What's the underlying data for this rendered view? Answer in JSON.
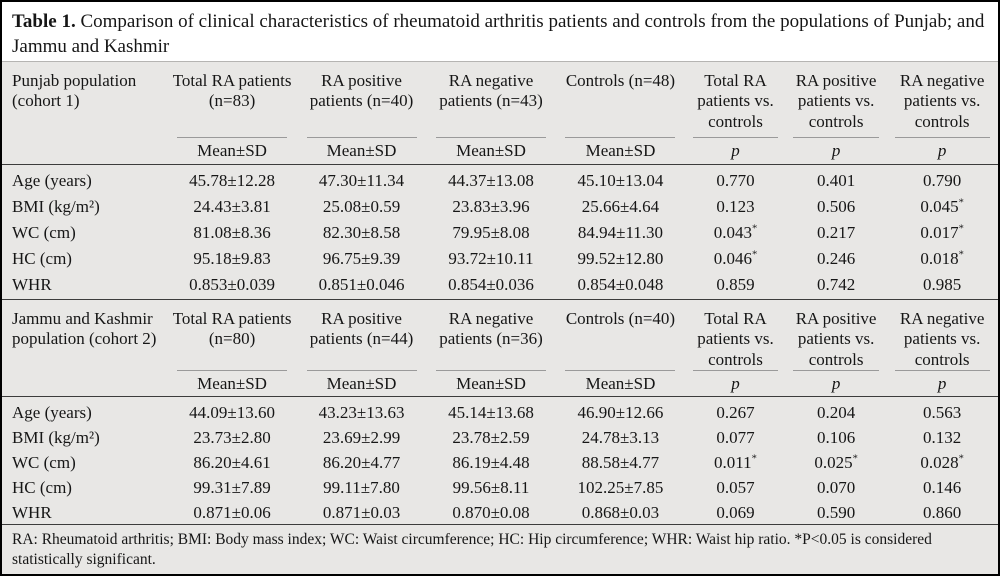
{
  "title": {
    "label": "Table 1.",
    "text": "Comparison of clinical characteristics of rheumatoid arthritis patients and controls from the populations of Punjab; and Jammu and Kashmir"
  },
  "tables": [
    {
      "row_header": "Punjab population (cohort 1)",
      "columns": [
        {
          "label": "Total RA patients (n=83)",
          "sub": "Mean±SD"
        },
        {
          "label": "RA positive patients (n=40)",
          "sub": "Mean±SD"
        },
        {
          "label": "RA negative patients (n=43)",
          "sub": "Mean±SD"
        },
        {
          "label": "Controls (n=48)",
          "sub": "Mean±SD"
        },
        {
          "label": "Total RA patients vs. controls",
          "sub": "p"
        },
        {
          "label": "RA positive patients vs. controls",
          "sub": "p"
        },
        {
          "label": "RA negative patients vs. controls",
          "sub": "p"
        }
      ],
      "rows": [
        {
          "label": "Age (years)",
          "values": [
            "45.78±12.28",
            "47.30±11.34",
            "44.37±13.08",
            "45.10±13.04",
            "0.770",
            "0.401",
            "0.790"
          ]
        },
        {
          "label": "BMI (kg/m²)",
          "values": [
            "24.43±3.81",
            "25.08±0.59",
            "23.83±3.96",
            "25.66±4.64",
            "0.123",
            "0.506",
            "0.045*"
          ]
        },
        {
          "label": "WC (cm)",
          "values": [
            "81.08±8.36",
            "82.30±8.58",
            "79.95±8.08",
            "84.94±11.30",
            "0.043*",
            "0.217",
            "0.017*"
          ]
        },
        {
          "label": "HC (cm)",
          "values": [
            "95.18±9.83",
            "96.75±9.39",
            "93.72±10.11",
            "99.52±12.80",
            "0.046*",
            "0.246",
            "0.018*"
          ]
        },
        {
          "label": "WHR",
          "values": [
            "0.853±0.039",
            "0.851±0.046",
            "0.854±0.036",
            "0.854±0.048",
            "0.859",
            "0.742",
            "0.985"
          ]
        }
      ]
    },
    {
      "row_header": "Jammu and Kashmir population (cohort 2)",
      "columns": [
        {
          "label": "Total RA patients (n=80)",
          "sub": "Mean±SD"
        },
        {
          "label": "RA positive patients (n=44)",
          "sub": "Mean±SD"
        },
        {
          "label": "RA negative patients (n=36)",
          "sub": "Mean±SD"
        },
        {
          "label": "Controls (n=40)",
          "sub": "Mean±SD"
        },
        {
          "label": "Total RA patients vs. controls",
          "sub": "p"
        },
        {
          "label": "RA positive patients vs. controls",
          "sub": "p"
        },
        {
          "label": "RA negative patients vs. controls",
          "sub": "p"
        }
      ],
      "rows": [
        {
          "label": "Age (years)",
          "values": [
            "44.09±13.60",
            "43.23±13.63",
            "45.14±13.68",
            "46.90±12.66",
            "0.267",
            "0.204",
            "0.563"
          ]
        },
        {
          "label": "BMI (kg/m²)",
          "values": [
            "23.73±2.80",
            "23.69±2.99",
            "23.78±2.59",
            "24.78±3.13",
            "0.077",
            "0.106",
            "0.132"
          ]
        },
        {
          "label": "WC (cm)",
          "values": [
            "86.20±4.61",
            "86.20±4.77",
            "86.19±4.48",
            "88.58±4.77",
            "0.011*",
            "0.025*",
            "0.028*"
          ]
        },
        {
          "label": "HC (cm)",
          "values": [
            "99.31±7.89",
            "99.11±7.80",
            "99.56±8.11",
            "102.25±7.85",
            "0.057",
            "0.070",
            "0.146"
          ]
        },
        {
          "label": "WHR",
          "values": [
            "0.871±0.06",
            "0.871±0.03",
            "0.870±0.08",
            "0.868±0.03",
            "0.069",
            "0.590",
            "0.860"
          ]
        }
      ]
    }
  ],
  "footnote": "RA: Rheumatoid arthritis; BMI: Body mass index; WC: Waist circumference; HC: Hip circumference; WHR: Waist hip ratio. *P<0.05 is considered statistically significant.",
  "colors": {
    "panel_bg": "#e8e7e5",
    "text": "#161616",
    "rule_dark": "#3c3c3c",
    "rule_light": "#9a9a9a",
    "border": "#000000"
  }
}
